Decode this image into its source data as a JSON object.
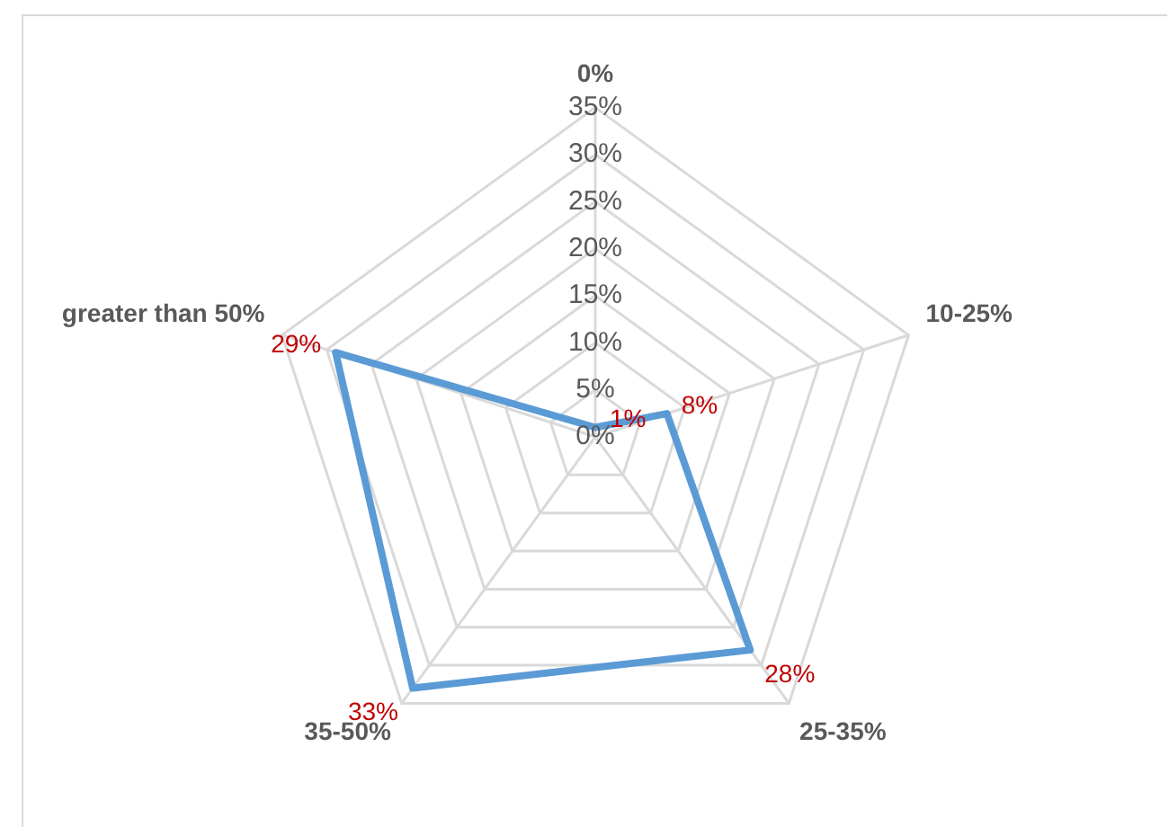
{
  "chart_data": {
    "type": "radar",
    "categories": [
      "0%",
      "10-25%",
      "25-35%",
      "35-50%",
      "greater than 50%"
    ],
    "series": [
      {
        "color": "#5b9bd5",
        "values": [
          1,
          8,
          28,
          33,
          29
        ],
        "value_labels": [
          "1%",
          "8%",
          "28%",
          "33%",
          "29%"
        ]
      }
    ],
    "ylim": [
      0,
      35
    ],
    "yticks": [
      {
        "value": 0,
        "label": "0%"
      },
      {
        "value": 5,
        "label": "5%"
      },
      {
        "value": 10,
        "label": "10%"
      },
      {
        "value": 15,
        "label": "15%"
      },
      {
        "value": 20,
        "label": "20%"
      },
      {
        "value": 25,
        "label": "25%"
      },
      {
        "value": 30,
        "label": "30%"
      },
      {
        "value": 35,
        "label": "35%"
      }
    ],
    "grid": true,
    "legend": false,
    "marker": "none"
  }
}
